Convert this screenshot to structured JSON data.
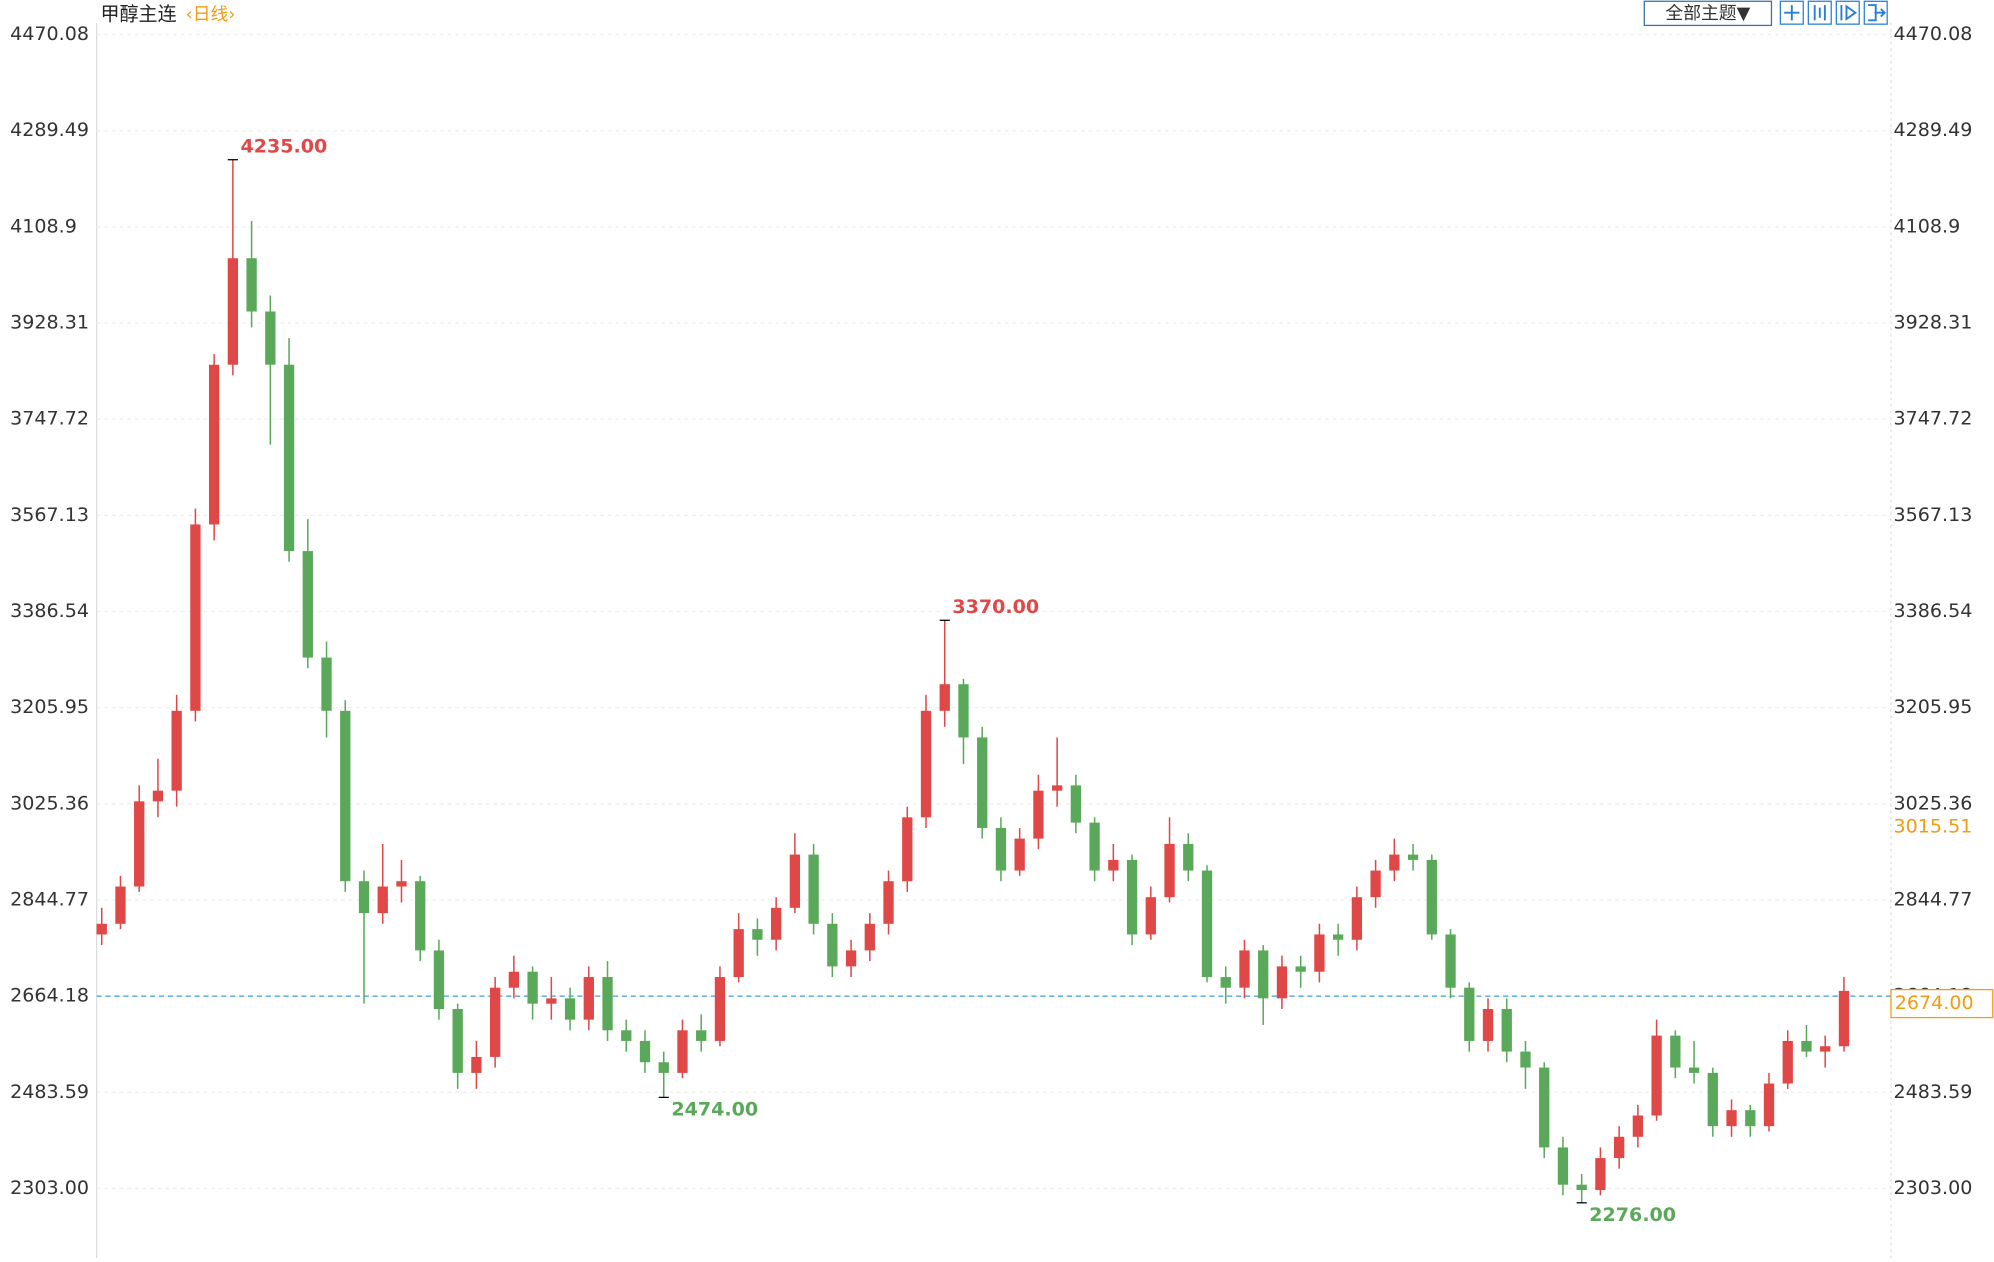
{
  "chart_data": {
    "type": "candlestick",
    "title": "甲醇主连",
    "period": "‹日线›",
    "toolbar_button": "全部主题▼",
    "ylim": [
      2172,
      4492
    ],
    "yticks": [
      4470.08,
      4289.49,
      4108.9,
      3928.31,
      3747.72,
      3567.13,
      3386.54,
      3205.95,
      3025.36,
      2844.77,
      2664.18,
      2483.59,
      {
        "value": 2303,
        "label": "2303.00"
      }
    ],
    "up_color": "#e04848",
    "down_color": "#5aa95a",
    "grid": true,
    "reference_line": 2664.18,
    "cursor_value": 3015.51,
    "last_price": {
      "value": 2674,
      "label": "2674.00"
    },
    "annotations": [
      {
        "label": "4235.00",
        "value": 4235,
        "kind": "high"
      },
      {
        "label": "3370.00",
        "value": 3370,
        "kind": "high"
      },
      {
        "label": "2474.00",
        "value": 2474,
        "kind": "low"
      },
      {
        "label": "2276.00",
        "value": 2276,
        "kind": "low"
      }
    ],
    "series": [
      {
        "open": [
          2780,
          2800,
          2870,
          3030,
          3050,
          3200,
          3550,
          3850,
          4050,
          3950,
          3850,
          3500,
          3300,
          3200,
          2880,
          2820,
          2870,
          2880,
          2750,
          2640,
          2520,
          2550,
          2680,
          2710,
          2650,
          2660,
          2620,
          2700,
          2600,
          2580,
          2540,
          2520,
          2600,
          2580,
          2700,
          2790,
          2770,
          2830,
          2930,
          2800,
          2720,
          2750,
          2800,
          2880,
          3000,
          3200,
          3250,
          3150,
          2980,
          2900,
          2960,
          3050,
          3060,
          2990,
          2900,
          2920,
          2780,
          2850,
          2950,
          2900,
          2700,
          2680,
          2750,
          2660,
          2720,
          2710,
          2780,
          2770,
          2850,
          2900,
          2930,
          2920,
          2780,
          2680,
          2580,
          2640,
          2560,
          2530,
          2380,
          2310,
          2300,
          2360,
          2400,
          2440,
          2590,
          2530,
          2520,
          2420,
          2450,
          2420,
          2500,
          2580,
          2560,
          2570
        ],
        "high": [
          2830,
          2890,
          3060,
          3110,
          3230,
          3580,
          3870,
          4235,
          4120,
          3980,
          3900,
          3560,
          3330,
          3220,
          2900,
          2950,
          2920,
          2890,
          2770,
          2650,
          2580,
          2700,
          2740,
          2720,
          2700,
          2680,
          2720,
          2730,
          2620,
          2600,
          2560,
          2620,
          2630,
          2720,
          2820,
          2810,
          2850,
          2970,
          2950,
          2820,
          2770,
          2820,
          2900,
          3020,
          3230,
          3370,
          3260,
          3170,
          3000,
          2980,
          3080,
          3150,
          3080,
          3000,
          2950,
          2930,
          2870,
          3000,
          2970,
          2910,
          2720,
          2770,
          2760,
          2740,
          2740,
          2800,
          2800,
          2870,
          2920,
          2960,
          2950,
          2930,
          2790,
          2690,
          2660,
          2660,
          2580,
          2540,
          2400,
          2330,
          2380,
          2420,
          2460,
          2620,
          2600,
          2580,
          2530,
          2470,
          2460,
          2520,
          2600,
          2610,
          2590,
          2700
        ],
        "low": [
          2760,
          2790,
          2860,
          3000,
          3020,
          3180,
          3520,
          3830,
          3920,
          3700,
          3480,
          3280,
          3150,
          2860,
          2650,
          2800,
          2840,
          2730,
          2620,
          2490,
          2490,
          2530,
          2660,
          2620,
          2620,
          2600,
          2600,
          2580,
          2560,
          2520,
          2474,
          2510,
          2560,
          2570,
          2690,
          2740,
          2750,
          2820,
          2780,
          2700,
          2700,
          2730,
          2780,
          2860,
          2980,
          3170,
          3100,
          2960,
          2880,
          2890,
          2940,
          3020,
          2970,
          2880,
          2880,
          2760,
          2770,
          2840,
          2880,
          2690,
          2650,
          2660,
          2610,
          2640,
          2680,
          2690,
          2740,
          2750,
          2830,
          2880,
          2900,
          2770,
          2660,
          2560,
          2560,
          2540,
          2490,
          2360,
          2290,
          2276,
          2290,
          2340,
          2380,
          2430,
          2510,
          2500,
          2400,
          2400,
          2400,
          2410,
          2490,
          2550,
          2530,
          2560
        ],
        "close": [
          2800,
          2870,
          3030,
          3050,
          3200,
          3550,
          3850,
          4050,
          3950,
          3850,
          3500,
          3300,
          3200,
          2880,
          2820,
          2870,
          2880,
          2750,
          2640,
          2520,
          2550,
          2680,
          2710,
          2650,
          2660,
          2620,
          2700,
          2600,
          2580,
          2540,
          2520,
          2600,
          2580,
          2700,
          2790,
          2770,
          2830,
          2930,
          2800,
          2720,
          2750,
          2800,
          2880,
          3000,
          3200,
          3250,
          3150,
          2980,
          2900,
          2960,
          3050,
          3060,
          2990,
          2900,
          2920,
          2780,
          2850,
          2950,
          2900,
          2700,
          2680,
          2750,
          2660,
          2720,
          2710,
          2780,
          2770,
          2850,
          2900,
          2930,
          2920,
          2780,
          2680,
          2580,
          2640,
          2560,
          2530,
          2380,
          2310,
          2300,
          2360,
          2400,
          2440,
          2590,
          2530,
          2520,
          2420,
          2450,
          2420,
          2500,
          2580,
          2560,
          2570,
          2674
        ]
      }
    ]
  }
}
